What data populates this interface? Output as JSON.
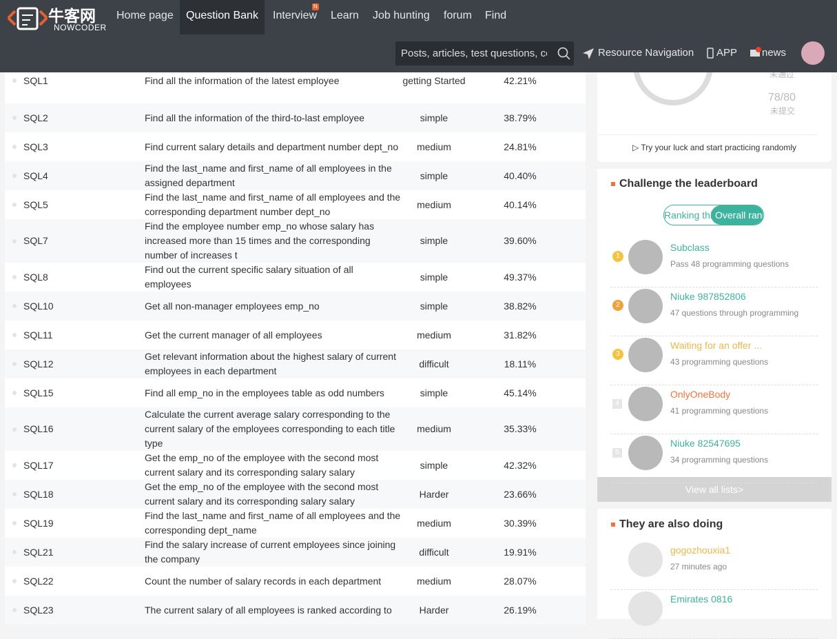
{
  "header": {
    "logo_cn": "牛客网",
    "logo_en": "NOWCODER",
    "nav": [
      "Home page",
      "Question Bank",
      "Interview",
      "Learn",
      "Job hunting",
      "forum",
      "Find"
    ],
    "nav_badge": "N",
    "search_placeholder": "Posts, articles, test questions, co",
    "links": [
      "Resource Navigation",
      "APP",
      "news"
    ]
  },
  "table": {
    "rows": [
      [
        "SQL1",
        "Find all the information of the latest employee",
        "getting Started",
        "42.21%"
      ],
      [
        "SQL2",
        "Find all the information of the third-to-last employee",
        "simple",
        "38.79%"
      ],
      [
        "SQL3",
        "Find current salary details and department number dept_no",
        "medium",
        "24.81%"
      ],
      [
        "SQL4",
        "Find the last_name and first_name of all employees in the assigned department",
        "simple",
        "40.40%"
      ],
      [
        "SQL5",
        "Find the last_name and first_name of all employees and the corresponding department number dept_no",
        "medium",
        "40.14%"
      ],
      [
        "SQL7",
        "Find the employee number emp_no whose salary has increased more than 15 times and the corresponding number of increases t",
        "simple",
        "39.60%"
      ],
      [
        "SQL8",
        "Find out the current specific salary situation of all employees",
        "simple",
        "49.37%"
      ],
      [
        "SQL10",
        "Get all non-manager employees emp_no",
        "simple",
        "38.82%"
      ],
      [
        "SQL11",
        "Get the current manager of all employees",
        "medium",
        "31.82%"
      ],
      [
        "SQL12",
        "Get relevant information about the highest salary of current employees in each department",
        "difficult",
        "18.11%"
      ],
      [
        "SQL15",
        "Find all emp_no in the employees table as odd numbers",
        "simple",
        "45.14%"
      ],
      [
        "SQL16",
        "Calculate the current average salary corresponding to the current salary of the employees corresponding to each title type",
        "medium",
        "35.33%"
      ],
      [
        "SQL17",
        "Get the emp_no of the employee with the second most current salary and its corresponding salary salary",
        "simple",
        "42.32%"
      ],
      [
        "SQL18",
        "Get the emp_no of the employee with the second most current salary and its corresponding salary salary",
        "Harder",
        "23.66%"
      ],
      [
        "SQL19",
        "Find the last_name and first_name of all employees and the corresponding dept_name",
        "medium",
        "30.39%"
      ],
      [
        "SQL21",
        "Find the salary increase of current employees since joining the company",
        "difficult",
        "19.91%"
      ],
      [
        "SQL22",
        "Count the number of salary records in each department",
        "medium",
        "28.07%"
      ],
      [
        "SQL23",
        "The current salary of all employees is ranked according to",
        "Harder",
        "26.19%"
      ]
    ]
  },
  "progress": {
    "failed_label": "未通过",
    "unsubmitted_count": "78/80",
    "unsubmitted_label": "未提交",
    "random_practice": "Try your luck and start practicing randomly"
  },
  "leaderboard": {
    "title": "Challenge the leaderboard",
    "tabs": [
      "Ranking this week",
      "Overall ranking"
    ],
    "entries": [
      {
        "rank": "1",
        "name": "Subclass",
        "detail": "Pass 48 programming questions",
        "color": "#3db39e"
      },
      {
        "rank": "2",
        "name": "Niuke 987852806",
        "detail": "47 questions through programming",
        "color": "#3db39e"
      },
      {
        "rank": "3",
        "name": "Waiting for an offer ...",
        "detail": "43 programming questions",
        "color": "#e8b84a"
      },
      {
        "rank": "4",
        "name": "OnlyOneBody",
        "detail": "41 programming questions",
        "color": "#f0723d"
      },
      {
        "rank": "5",
        "name": "Niuke 82547695",
        "detail": "34 programming questions",
        "color": "#3db39e"
      }
    ],
    "view_all": "View all lists>"
  },
  "activity": {
    "title": "They are also doing",
    "entries": [
      {
        "name": "gogozhouxia1",
        "time": "27 minutes ago"
      },
      {
        "name": "Emirates 0816"
      }
    ]
  }
}
